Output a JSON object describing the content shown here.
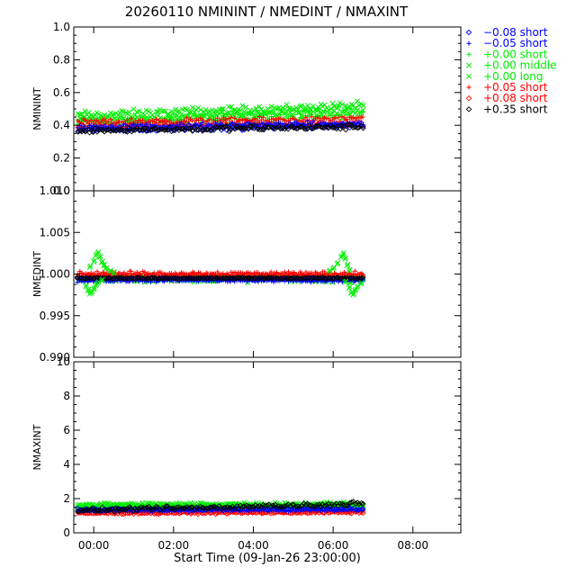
{
  "colors": {
    "black": "#000000",
    "blue": "#0000ff",
    "green": "#00ee00",
    "red": "#ff0000"
  },
  "chart_data": {
    "type": "scatter",
    "title": "20260110 NMININT / NMEDINT / NMAXINT",
    "xlabel": "Start Time (09-Jan-26 23:00:00)",
    "x_unit": "hours since 09-Jan-26 23:00:00",
    "xlim": [
      0.5,
      10.2
    ],
    "x_ticks": [
      {
        "value": 1.0,
        "label": "00:00"
      },
      {
        "value": 3.0,
        "label": "02:00"
      },
      {
        "value": 5.0,
        "label": "04:00"
      },
      {
        "value": 7.0,
        "label": "06:00"
      },
      {
        "value": 9.0,
        "label": "08:00"
      }
    ],
    "data_x_range": [
      0.6,
      7.75
    ],
    "legend": [
      {
        "label": "−0.08 short",
        "color": "#0000ff",
        "marker": "diamond"
      },
      {
        "label": "−0.05 short",
        "color": "#0000ff",
        "marker": "plus"
      },
      {
        "label": "+0.00 short",
        "color": "#00ee00",
        "marker": "plus"
      },
      {
        "label": "+0.00 middle",
        "color": "#00ee00",
        "marker": "x"
      },
      {
        "label": "+0.00 long",
        "color": "#00ee00",
        "marker": "x"
      },
      {
        "label": "+0.05 short",
        "color": "#ff0000",
        "marker": "plus"
      },
      {
        "label": "+0.08 short",
        "color": "#ff0000",
        "marker": "diamond"
      },
      {
        "label": "+0.35 short",
        "color": "#000000",
        "marker": "diamond"
      }
    ],
    "panels": [
      {
        "ylabel": "NMININT",
        "ylim": [
          0.0,
          1.0
        ],
        "y_ticks": [
          "0.0",
          "0.2",
          "0.4",
          "0.6",
          "0.8",
          "1.0"
        ],
        "y_tick_values": [
          0.0,
          0.2,
          0.4,
          0.6,
          0.8,
          1.0
        ],
        "series": [
          {
            "name": "+0.00 long",
            "color": "#00ee00",
            "marker": "x",
            "start": 0.46,
            "end": 0.52,
            "noise": 0.03,
            "edge_dip": 0.0
          },
          {
            "name": "+0.00 middle",
            "color": "#00ee00",
            "marker": "x",
            "start": 0.43,
            "end": 0.49,
            "noise": 0.025,
            "edge_dip": 0.0
          },
          {
            "name": "+0.00 short",
            "color": "#00ee00",
            "marker": "plus",
            "start": 0.41,
            "end": 0.46,
            "noise": 0.025,
            "edge_dip": 0.0
          },
          {
            "name": "+0.05 short",
            "color": "#ff0000",
            "marker": "plus",
            "start": 0.42,
            "end": 0.44,
            "noise": 0.02,
            "edge_dip": 0.0
          },
          {
            "name": "+0.08 short",
            "color": "#ff0000",
            "marker": "diamond",
            "start": 0.39,
            "end": 0.41,
            "noise": 0.02,
            "edge_dip": 0.0
          },
          {
            "name": "−0.05 short",
            "color": "#0000ff",
            "marker": "plus",
            "start": 0.39,
            "end": 0.41,
            "noise": 0.02,
            "edge_dip": 0.0
          },
          {
            "name": "−0.08 short",
            "color": "#0000ff",
            "marker": "diamond",
            "start": 0.37,
            "end": 0.4,
            "noise": 0.02,
            "edge_dip": 0.0
          },
          {
            "name": "+0.35 short",
            "color": "#000000",
            "marker": "diamond",
            "start": 0.37,
            "end": 0.39,
            "noise": 0.02,
            "edge_dip": 0.0
          }
        ]
      },
      {
        "ylabel": "NMEDINT",
        "ylim": [
          0.99,
          1.01
        ],
        "y_ticks": [
          "0.990",
          "0.995",
          "1.000",
          "1.005",
          "1.010"
        ],
        "y_tick_values": [
          0.99,
          0.995,
          1.0,
          1.005,
          1.01
        ],
        "series": [
          {
            "name": "+0.00 long",
            "color": "#00ee00",
            "marker": "x",
            "start": 0.9995,
            "end": 0.9995,
            "noise": 0.0004,
            "edge_dip": 0.0
          },
          {
            "name": "+0.00 middle",
            "color": "#00ee00",
            "marker": "x",
            "start": 0.9994,
            "end": 0.9994,
            "noise": 0.0005,
            "edge_dip": 0.0
          },
          {
            "name": "+0.00 short",
            "color": "#00ee00",
            "marker": "plus",
            "start": 0.9996,
            "end": 0.9996,
            "noise": 0.0004,
            "edge_dip": 0.0
          },
          {
            "name": "+0.05 short",
            "color": "#ff0000",
            "marker": "plus",
            "start": 1.0001,
            "end": 1.0001,
            "noise": 0.0003,
            "edge_dip": 0.0
          },
          {
            "name": "+0.08 short",
            "color": "#ff0000",
            "marker": "diamond",
            "start": 0.9998,
            "end": 0.9998,
            "noise": 0.0002,
            "edge_dip": 0.0
          },
          {
            "name": "−0.05 short",
            "color": "#0000ff",
            "marker": "plus",
            "start": 0.9992,
            "end": 0.9992,
            "noise": 0.0002,
            "edge_dip": 0.0
          },
          {
            "name": "−0.08 short",
            "color": "#0000ff",
            "marker": "diamond",
            "start": 0.9994,
            "end": 0.9994,
            "noise": 0.0002,
            "edge_dip": 0.0
          },
          {
            "name": "+0.35 short",
            "color": "#000000",
            "marker": "diamond",
            "start": 0.9995,
            "end": 0.9995,
            "noise": 0.0001,
            "edge_dip": 0.0
          }
        ],
        "edge_transients": [
          {
            "color": "#00ee00",
            "marker": "x",
            "x": [
              0.9,
              1.0,
              1.05,
              1.1,
              1.15,
              1.2,
              1.25,
              1.3,
              1.4,
              1.5
            ],
            "y": [
              1.0008,
              1.0015,
              1.0022,
              1.0025,
              1.002,
              1.0014,
              1.001,
              1.0006,
              1.0003,
              1.0001
            ]
          },
          {
            "color": "#00ee00",
            "marker": "x",
            "x": [
              0.8,
              0.85,
              0.9,
              0.95,
              1.0,
              1.05,
              1.1,
              1.2
            ],
            "y": [
              0.9985,
              0.998,
              0.9976,
              0.9978,
              0.9982,
              0.9986,
              0.9989,
              0.9992
            ]
          },
          {
            "color": "#00ee00",
            "marker": "x",
            "x": [
              6.9,
              7.0,
              7.1,
              7.2,
              7.25,
              7.3,
              7.35,
              7.4
            ],
            "y": [
              1.0003,
              1.0006,
              1.0012,
              1.002,
              1.0024,
              1.0018,
              1.001,
              1.0004
            ]
          },
          {
            "color": "#00ee00",
            "marker": "x",
            "x": [
              7.3,
              7.4,
              7.45,
              7.5,
              7.55,
              7.6,
              7.7
            ],
            "y": [
              0.999,
              0.9983,
              0.9977,
              0.9975,
              0.998,
              0.9984,
              0.9988
            ]
          }
        ]
      },
      {
        "ylabel": "NMAXINT",
        "ylim": [
          0,
          10
        ],
        "y_ticks": [
          "0",
          "2",
          "4",
          "6",
          "8",
          "10"
        ],
        "y_tick_values": [
          0,
          2,
          4,
          6,
          8,
          10
        ],
        "series": [
          {
            "name": "+0.00 long",
            "color": "#00ee00",
            "marker": "x",
            "start": 1.65,
            "end": 1.7,
            "noise": 0.12,
            "edge_dip": 0.0
          },
          {
            "name": "+0.00 middle",
            "color": "#00ee00",
            "marker": "x",
            "start": 1.55,
            "end": 1.6,
            "noise": 0.12,
            "edge_dip": 0.0
          },
          {
            "name": "+0.00 short",
            "color": "#00ee00",
            "marker": "plus",
            "start": 1.45,
            "end": 1.5,
            "noise": 0.1,
            "edge_dip": 0.0
          },
          {
            "name": "+0.05 short",
            "color": "#ff0000",
            "marker": "plus",
            "start": 1.2,
            "end": 1.25,
            "noise": 0.08,
            "edge_dip": 0.0
          },
          {
            "name": "+0.08 short",
            "color": "#ff0000",
            "marker": "diamond",
            "start": 1.15,
            "end": 1.2,
            "noise": 0.08,
            "edge_dip": 0.0
          },
          {
            "name": "−0.05 short",
            "color": "#0000ff",
            "marker": "plus",
            "start": 1.3,
            "end": 1.35,
            "noise": 0.08,
            "edge_dip": 0.0
          },
          {
            "name": "−0.08 short",
            "color": "#0000ff",
            "marker": "diamond",
            "start": 1.35,
            "end": 1.4,
            "noise": 0.1,
            "edge_dip": 0.0
          },
          {
            "name": "+0.35 short",
            "color": "#000000",
            "marker": "diamond",
            "start": 1.3,
            "end": 1.7,
            "noise": 0.15,
            "edge_dip": 0.0
          }
        ]
      }
    ]
  }
}
